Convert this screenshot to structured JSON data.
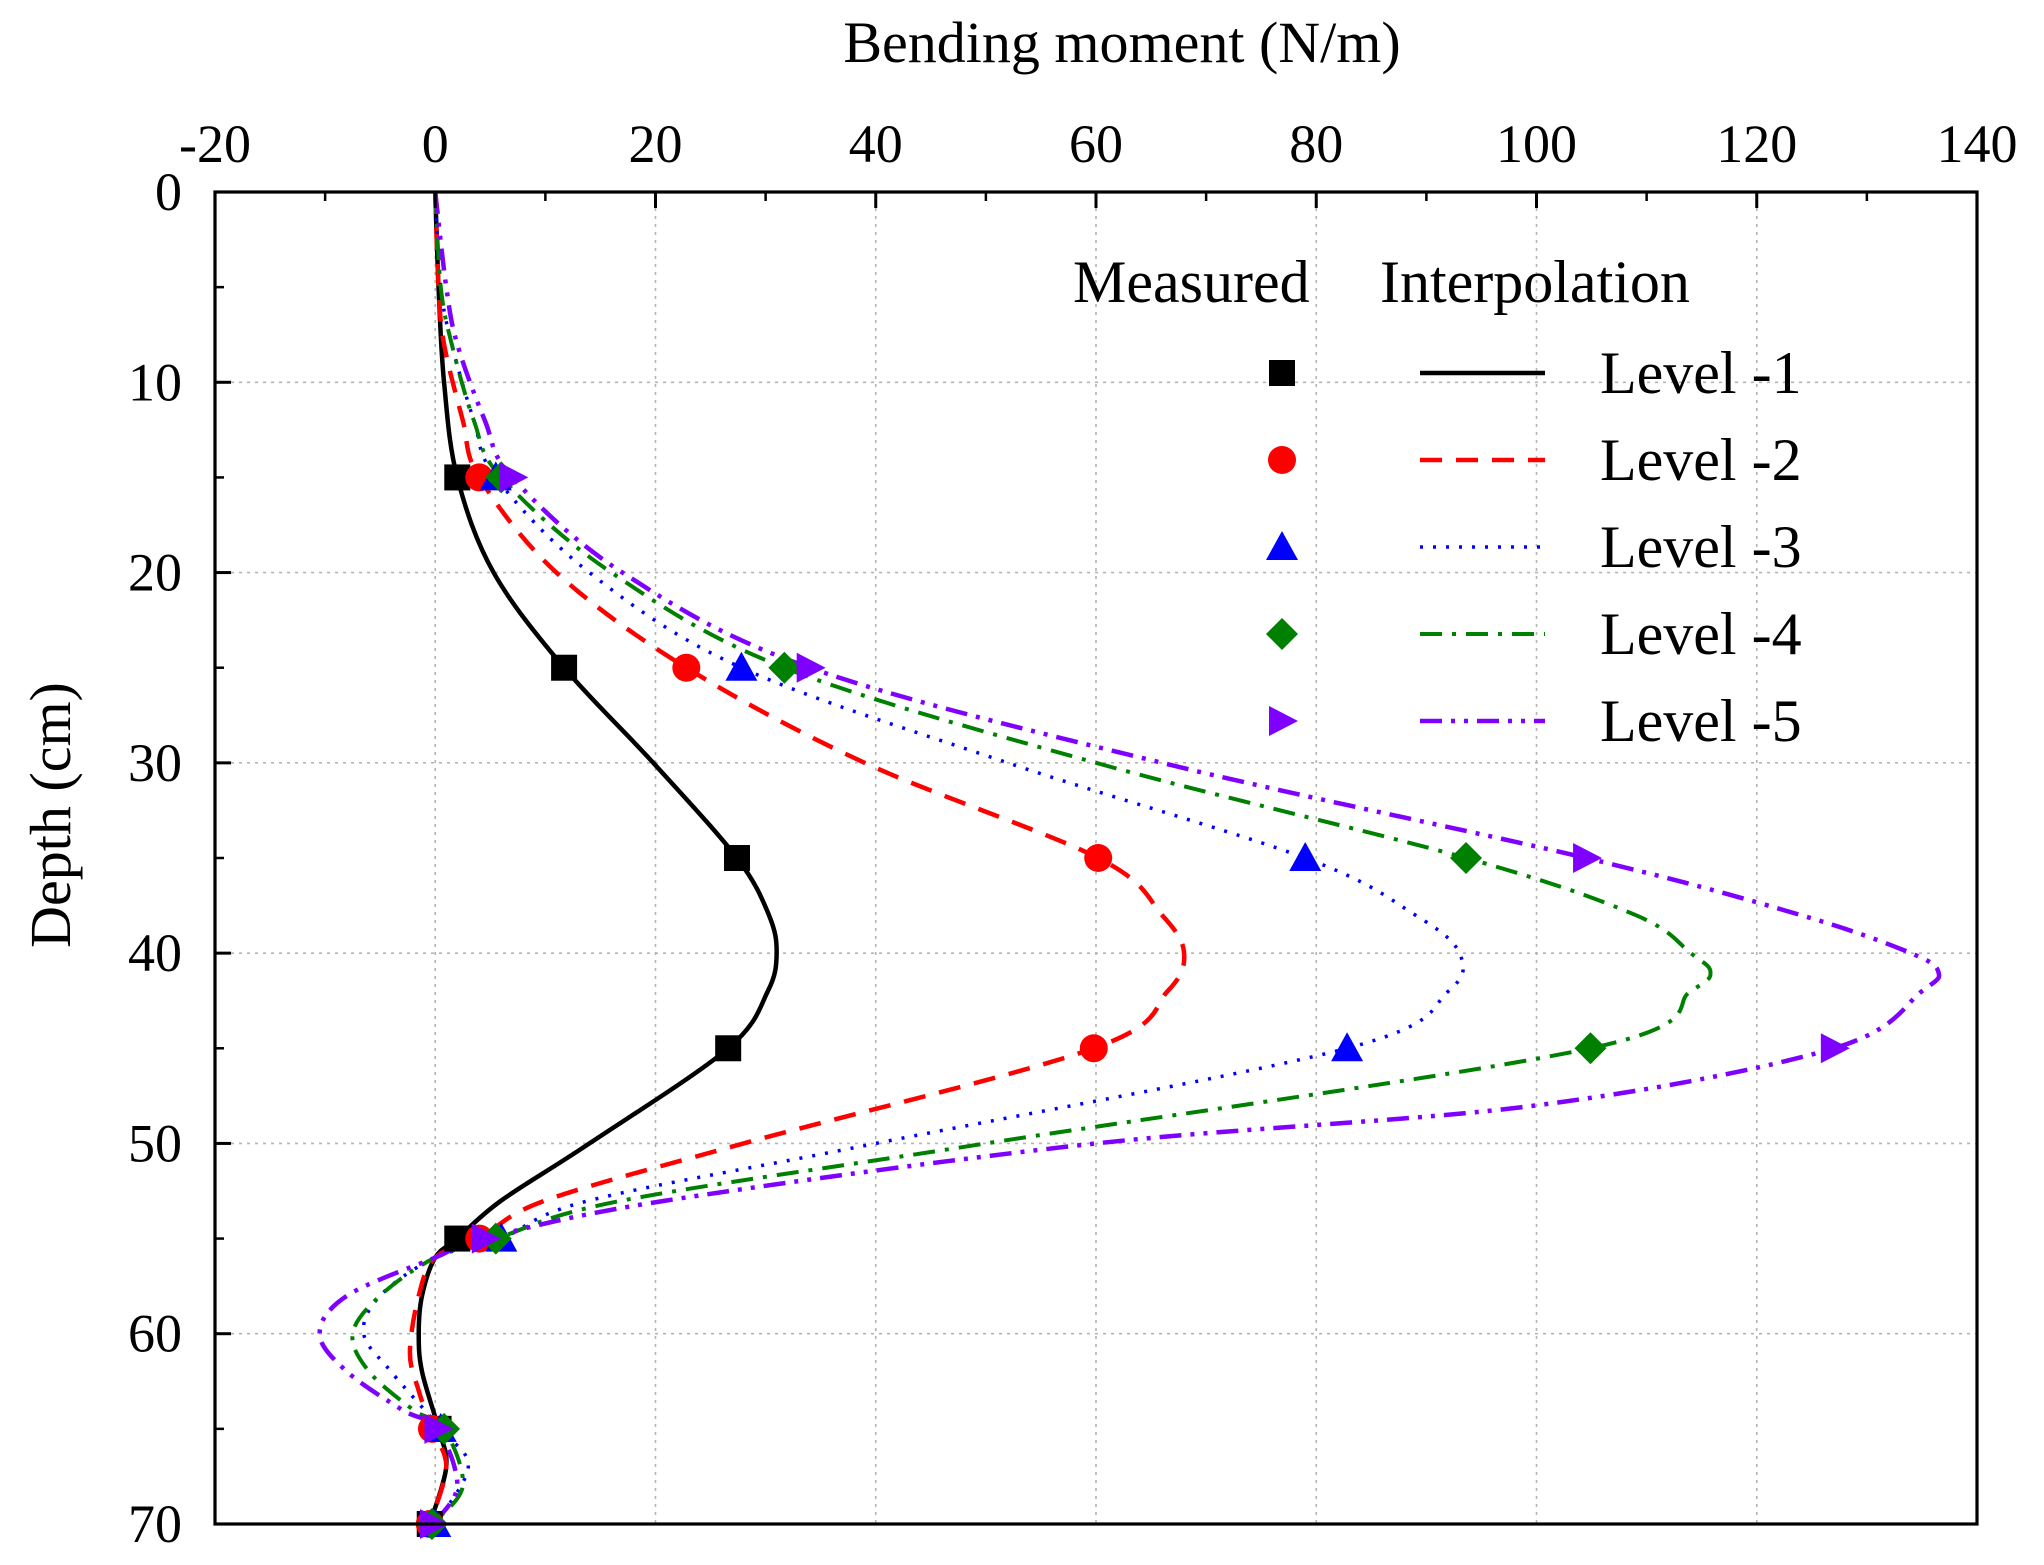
{
  "chart_data": {
    "type": "line",
    "orientation": "depth-profile",
    "title": "",
    "xlabel": "Bending moment (N/m)",
    "ylabel": "Depth (cm)",
    "xlim": [
      -20,
      140
    ],
    "ylim": [
      0,
      70
    ],
    "x_axis_position": "top",
    "y_axis_inverted": true,
    "x_ticks": [
      -20,
      0,
      20,
      40,
      60,
      80,
      100,
      120,
      140
    ],
    "y_ticks": [
      0,
      10,
      20,
      30,
      40,
      50,
      60,
      70
    ],
    "x_tick_labels": [
      "-20",
      "0",
      "20",
      "40",
      "60",
      "80",
      "100",
      "120",
      "140"
    ],
    "y_tick_labels": [
      "0",
      "10",
      "20",
      "30",
      "40",
      "50",
      "60",
      "70"
    ],
    "grid": true,
    "legend": {
      "placement": "top-right",
      "header_measured": "Measured",
      "header_interpolation": "Interpolation"
    },
    "series": [
      {
        "name": "Level -1",
        "color": "#000000",
        "marker": "square",
        "line_style": "solid",
        "measured": [
          {
            "depth": 15,
            "moment": 2
          },
          {
            "depth": 25,
            "moment": 11.7
          },
          {
            "depth": 35,
            "moment": 27.4
          },
          {
            "depth": 45,
            "moment": 26.6
          },
          {
            "depth": 55,
            "moment": 2
          },
          {
            "depth": 65,
            "moment": 0.3
          },
          {
            "depth": 70,
            "moment": -0.5
          }
        ],
        "interpolation": [
          {
            "depth": 0,
            "moment": 0
          },
          {
            "depth": 5,
            "moment": 0.3
          },
          {
            "depth": 10,
            "moment": 0.8
          },
          {
            "depth": 15,
            "moment": 2
          },
          {
            "depth": 20,
            "moment": 5.3
          },
          {
            "depth": 25,
            "moment": 11.7
          },
          {
            "depth": 30,
            "moment": 19.8
          },
          {
            "depth": 35,
            "moment": 27.4
          },
          {
            "depth": 38,
            "moment": 30.3
          },
          {
            "depth": 40,
            "moment": 31
          },
          {
            "depth": 42,
            "moment": 30.2
          },
          {
            "depth": 45,
            "moment": 26.6
          },
          {
            "depth": 50,
            "moment": 14
          },
          {
            "depth": 53,
            "moment": 6
          },
          {
            "depth": 55,
            "moment": 2
          },
          {
            "depth": 56,
            "moment": 0
          },
          {
            "depth": 58,
            "moment": -1.2
          },
          {
            "depth": 60,
            "moment": -1.5
          },
          {
            "depth": 62,
            "moment": -1.2
          },
          {
            "depth": 65,
            "moment": 0.3
          },
          {
            "depth": 67,
            "moment": 1
          },
          {
            "depth": 70,
            "moment": -0.5
          }
        ]
      },
      {
        "name": "Level -2",
        "color": "#ff0000",
        "marker": "circle",
        "line_style": "dash",
        "measured": [
          {
            "depth": 15,
            "moment": 4
          },
          {
            "depth": 25,
            "moment": 22.8
          },
          {
            "depth": 35,
            "moment": 60.2
          },
          {
            "depth": 45,
            "moment": 59.8
          },
          {
            "depth": 55,
            "moment": 4
          },
          {
            "depth": 65,
            "moment": -0.3
          },
          {
            "depth": 70,
            "moment": -0.5
          }
        ],
        "interpolation": [
          {
            "depth": 0,
            "moment": 0
          },
          {
            "depth": 5,
            "moment": 0.3
          },
          {
            "depth": 8,
            "moment": 0.8
          },
          {
            "depth": 12,
            "moment": 2.5
          },
          {
            "depth": 15,
            "moment": 4
          },
          {
            "depth": 20,
            "moment": 11
          },
          {
            "depth": 25,
            "moment": 22.8
          },
          {
            "depth": 30,
            "moment": 39
          },
          {
            "depth": 35,
            "moment": 60.2
          },
          {
            "depth": 38,
            "moment": 66
          },
          {
            "depth": 40,
            "moment": 68
          },
          {
            "depth": 42,
            "moment": 66.5
          },
          {
            "depth": 45,
            "moment": 59.8
          },
          {
            "depth": 50,
            "moment": 28
          },
          {
            "depth": 53,
            "moment": 10
          },
          {
            "depth": 55,
            "moment": 4
          },
          {
            "depth": 56,
            "moment": 0
          },
          {
            "depth": 58,
            "moment": -1.5
          },
          {
            "depth": 61,
            "moment": -2.3
          },
          {
            "depth": 63,
            "moment": -1.5
          },
          {
            "depth": 65,
            "moment": -0.3
          },
          {
            "depth": 67,
            "moment": 1
          },
          {
            "depth": 70,
            "moment": -0.5
          }
        ]
      },
      {
        "name": "Level -3",
        "color": "#0000ff",
        "marker": "triangle-up",
        "line_style": "dot",
        "measured": [
          {
            "depth": 15,
            "moment": 5.5
          },
          {
            "depth": 25,
            "moment": 27.8
          },
          {
            "depth": 35,
            "moment": 79
          },
          {
            "depth": 45,
            "moment": 82.8
          },
          {
            "depth": 55,
            "moment": 6
          },
          {
            "depth": 65,
            "moment": 0.5
          },
          {
            "depth": 70,
            "moment": 0
          }
        ],
        "interpolation": [
          {
            "depth": 0,
            "moment": 0
          },
          {
            "depth": 5,
            "moment": 0.5
          },
          {
            "depth": 8,
            "moment": 1.5
          },
          {
            "depth": 12,
            "moment": 3.5
          },
          {
            "depth": 15,
            "moment": 5.5
          },
          {
            "depth": 20,
            "moment": 14
          },
          {
            "depth": 25,
            "moment": 27.8
          },
          {
            "depth": 30,
            "moment": 52
          },
          {
            "depth": 35,
            "moment": 79
          },
          {
            "depth": 38,
            "moment": 89
          },
          {
            "depth": 40,
            "moment": 93
          },
          {
            "depth": 42,
            "moment": 92
          },
          {
            "depth": 45,
            "moment": 82.8
          },
          {
            "depth": 50,
            "moment": 40
          },
          {
            "depth": 53,
            "moment": 14
          },
          {
            "depth": 55,
            "moment": 6
          },
          {
            "depth": 56,
            "moment": 0
          },
          {
            "depth": 58,
            "moment": -5
          },
          {
            "depth": 60,
            "moment": -6.5
          },
          {
            "depth": 62,
            "moment": -4
          },
          {
            "depth": 65,
            "moment": 0.5
          },
          {
            "depth": 67,
            "moment": 3
          },
          {
            "depth": 70,
            "moment": 0
          }
        ]
      },
      {
        "name": "Level -4",
        "color": "#008000",
        "marker": "diamond",
        "line_style": "dash-dot",
        "measured": [
          {
            "depth": 15,
            "moment": 6
          },
          {
            "depth": 25,
            "moment": 31.7
          },
          {
            "depth": 35,
            "moment": 93.6
          },
          {
            "depth": 45,
            "moment": 104.9
          },
          {
            "depth": 55,
            "moment": 5.5
          },
          {
            "depth": 65,
            "moment": 0.8
          },
          {
            "depth": 70,
            "moment": -0.3
          }
        ],
        "interpolation": [
          {
            "depth": 0,
            "moment": 0
          },
          {
            "depth": 5,
            "moment": 0.5
          },
          {
            "depth": 8,
            "moment": 1.5
          },
          {
            "depth": 12,
            "moment": 3.5
          },
          {
            "depth": 15,
            "moment": 6
          },
          {
            "depth": 20,
            "moment": 16
          },
          {
            "depth": 25,
            "moment": 31.7
          },
          {
            "depth": 30,
            "moment": 60
          },
          {
            "depth": 35,
            "moment": 93.6
          },
          {
            "depth": 38,
            "moment": 109
          },
          {
            "depth": 40,
            "moment": 114
          },
          {
            "depth": 41,
            "moment": 115.8
          },
          {
            "depth": 42,
            "moment": 114
          },
          {
            "depth": 45,
            "moment": 104.9
          },
          {
            "depth": 50,
            "moment": 50
          },
          {
            "depth": 53,
            "moment": 17
          },
          {
            "depth": 55,
            "moment": 5.5
          },
          {
            "depth": 56,
            "moment": 0
          },
          {
            "depth": 58,
            "moment": -5
          },
          {
            "depth": 60,
            "moment": -7.5
          },
          {
            "depth": 62,
            "moment": -6
          },
          {
            "depth": 64,
            "moment": -2
          },
          {
            "depth": 65,
            "moment": 0.8
          },
          {
            "depth": 68,
            "moment": 2.5
          },
          {
            "depth": 70,
            "moment": -0.3
          }
        ]
      },
      {
        "name": "Level -5",
        "color": "#8000ff",
        "marker": "triangle-right",
        "line_style": "dash-dot-dot",
        "measured": [
          {
            "depth": 15,
            "moment": 7
          },
          {
            "depth": 25,
            "moment": 34
          },
          {
            "depth": 35,
            "moment": 104.5
          },
          {
            "depth": 45,
            "moment": 127
          },
          {
            "depth": 55,
            "moment": 4.5
          },
          {
            "depth": 65,
            "moment": 0.2
          },
          {
            "depth": 70,
            "moment": -0.2
          }
        ],
        "interpolation": [
          {
            "depth": 0,
            "moment": 0
          },
          {
            "depth": 5,
            "moment": 1
          },
          {
            "depth": 8,
            "moment": 2
          },
          {
            "depth": 12,
            "moment": 4.5
          },
          {
            "depth": 15,
            "moment": 7
          },
          {
            "depth": 20,
            "moment": 17
          },
          {
            "depth": 25,
            "moment": 34
          },
          {
            "depth": 30,
            "moment": 66
          },
          {
            "depth": 35,
            "moment": 104.5
          },
          {
            "depth": 38,
            "moment": 124
          },
          {
            "depth": 40,
            "moment": 134
          },
          {
            "depth": 41,
            "moment": 136.5
          },
          {
            "depth": 42,
            "moment": 135
          },
          {
            "depth": 45,
            "moment": 127
          },
          {
            "depth": 48,
            "moment": 100
          },
          {
            "depth": 50,
            "moment": 60
          },
          {
            "depth": 53,
            "moment": 21
          },
          {
            "depth": 55,
            "moment": 4.5
          },
          {
            "depth": 56,
            "moment": 0
          },
          {
            "depth": 58,
            "moment": -8
          },
          {
            "depth": 60,
            "moment": -10.5
          },
          {
            "depth": 62,
            "moment": -8
          },
          {
            "depth": 64,
            "moment": -3
          },
          {
            "depth": 65,
            "moment": 0.2
          },
          {
            "depth": 68,
            "moment": 2
          },
          {
            "depth": 70,
            "moment": -0.2
          }
        ]
      }
    ]
  }
}
